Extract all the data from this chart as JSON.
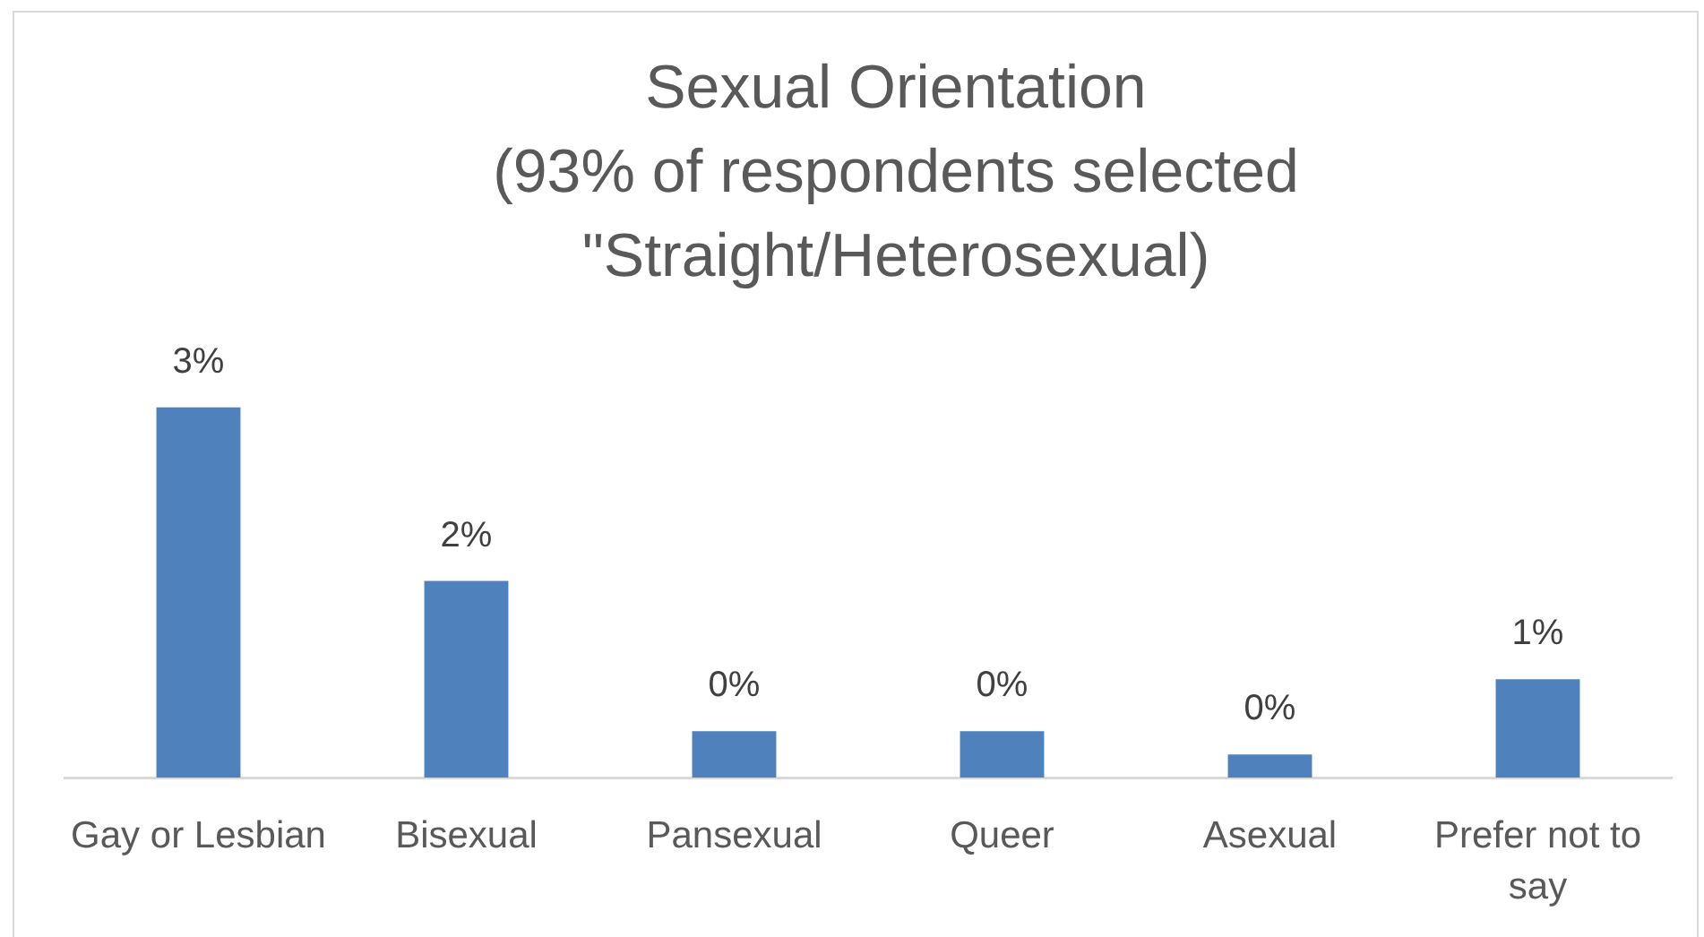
{
  "chart_data": {
    "type": "bar",
    "title": "Sexual Orientation",
    "subtitle": "(93% of respondents selected \"Straight/Heterosexual)",
    "categories": [
      "Gay or Lesbian",
      "Bisexual",
      "Pansexual",
      "Queer",
      "Asexual",
      "Prefer not to say"
    ],
    "values": [
      3.2,
      1.7,
      0.4,
      0.4,
      0.2,
      0.85
    ],
    "color": "#4f81bd",
    "value_labels": [
      "3%",
      "2%",
      "0%",
      "0%",
      "0%",
      "1%"
    ]
  }
}
